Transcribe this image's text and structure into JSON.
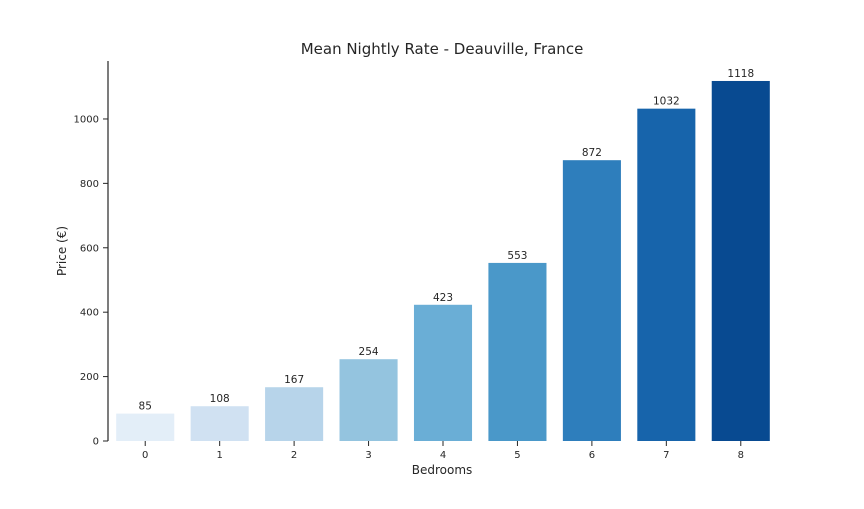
{
  "chart_data": {
    "type": "bar",
    "title": "Mean Nightly Rate - Deauville, France",
    "xlabel": "Bedrooms",
    "ylabel": "Price (€)",
    "categories": [
      "0",
      "1",
      "2",
      "3",
      "4",
      "5",
      "6",
      "7",
      "8"
    ],
    "values": [
      85,
      108,
      167,
      254,
      423,
      553,
      872,
      1032,
      1118
    ],
    "data_labels": [
      "85",
      "108",
      "167",
      "254",
      "423",
      "553",
      "872",
      "1032",
      "1118"
    ],
    "ylim": [
      0,
      1180
    ],
    "yticks": [
      0,
      200,
      400,
      600,
      800,
      1000
    ],
    "ytick_labels": [
      "0",
      "200",
      "400",
      "600",
      "800",
      "1000"
    ],
    "grid": false,
    "legend": "none",
    "colors": [
      "#e3eef8",
      "#d0e1f2",
      "#b7d4ea",
      "#94c4df",
      "#6aaed6",
      "#4a98c9",
      "#2e7ebc",
      "#1764ab",
      "#084a91"
    ]
  }
}
